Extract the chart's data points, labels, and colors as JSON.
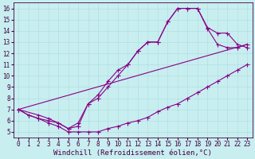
{
  "background_color": "#c8eef0",
  "line_color": "#880088",
  "xlabel": "Windchill (Refroidissement éolien,°C)",
  "xlabel_fontsize": 6.5,
  "tick_fontsize": 5.5,
  "xlim": [
    -0.5,
    23.5
  ],
  "ylim": [
    4.5,
    16.5
  ],
  "xticks": [
    0,
    1,
    2,
    3,
    4,
    5,
    6,
    7,
    8,
    9,
    10,
    11,
    12,
    13,
    14,
    15,
    16,
    17,
    18,
    19,
    20,
    21,
    22,
    23
  ],
  "yticks": [
    5,
    6,
    7,
    8,
    9,
    10,
    11,
    12,
    13,
    14,
    15,
    16
  ],
  "line1_x": [
    0,
    2,
    3,
    4,
    5,
    6,
    7,
    8,
    9,
    10,
    11,
    12,
    13,
    14,
    15,
    16,
    17,
    18,
    19,
    20,
    21,
    22,
    23
  ],
  "line1_y": [
    7,
    6.5,
    6.2,
    5.8,
    5.3,
    5.8,
    7.5,
    8.0,
    9.0,
    10.0,
    11.0,
    12.2,
    13.0,
    13.0,
    14.8,
    16.0,
    16.0,
    16.0,
    14.2,
    12.8,
    12.5,
    12.5,
    12.8
  ],
  "line2_x": [
    0,
    1,
    2,
    3,
    4,
    5,
    6,
    7,
    8,
    9,
    10,
    11,
    12,
    13,
    14,
    15,
    16,
    17,
    18,
    19,
    20,
    21,
    22,
    23
  ],
  "line2_y": [
    7,
    6.5,
    6.2,
    6.0,
    5.8,
    5.3,
    5.5,
    7.5,
    8.3,
    9.5,
    10.5,
    11.0,
    12.2,
    13.0,
    13.0,
    14.8,
    16.0,
    16.0,
    16.0,
    14.3,
    13.8,
    13.8,
    12.8,
    12.5
  ],
  "line3_x": [
    0,
    23
  ],
  "line3_y": [
    7,
    12.8
  ],
  "line4_x": [
    0,
    1,
    2,
    3,
    4,
    5,
    6,
    7,
    8,
    9,
    10,
    11,
    12,
    13,
    14,
    15,
    16,
    17,
    18,
    19,
    20,
    21,
    22,
    23
  ],
  "line4_y": [
    7,
    6.5,
    6.2,
    5.8,
    5.5,
    5.0,
    5.0,
    5.0,
    5.0,
    5.3,
    5.5,
    5.8,
    6.0,
    6.3,
    6.8,
    7.2,
    7.5,
    8.0,
    8.5,
    9.0,
    9.5,
    10.0,
    10.5,
    11.0
  ]
}
